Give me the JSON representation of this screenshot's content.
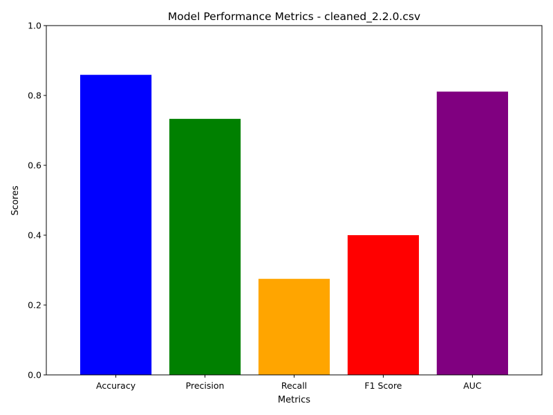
{
  "chart_data": {
    "type": "bar",
    "title": "Model Performance Metrics - cleaned_2.2.0.csv",
    "xlabel": "Metrics",
    "ylabel": "Scores",
    "categories": [
      "Accuracy",
      "Precision",
      "Recall",
      "F1 Score",
      "AUC"
    ],
    "values": [
      0.859,
      0.733,
      0.275,
      0.4,
      0.811
    ],
    "colors": [
      "#0000ff",
      "#008000",
      "#ffa500",
      "#ff0000",
      "#800080"
    ],
    "ylim": [
      0,
      1.0
    ],
    "yticks": [
      0.0,
      0.2,
      0.4,
      0.6,
      0.8,
      1.0
    ],
    "ytick_labels": [
      "0.0",
      "0.2",
      "0.4",
      "0.6",
      "0.8",
      "1.0"
    ],
    "grid": false,
    "legend": "none"
  }
}
